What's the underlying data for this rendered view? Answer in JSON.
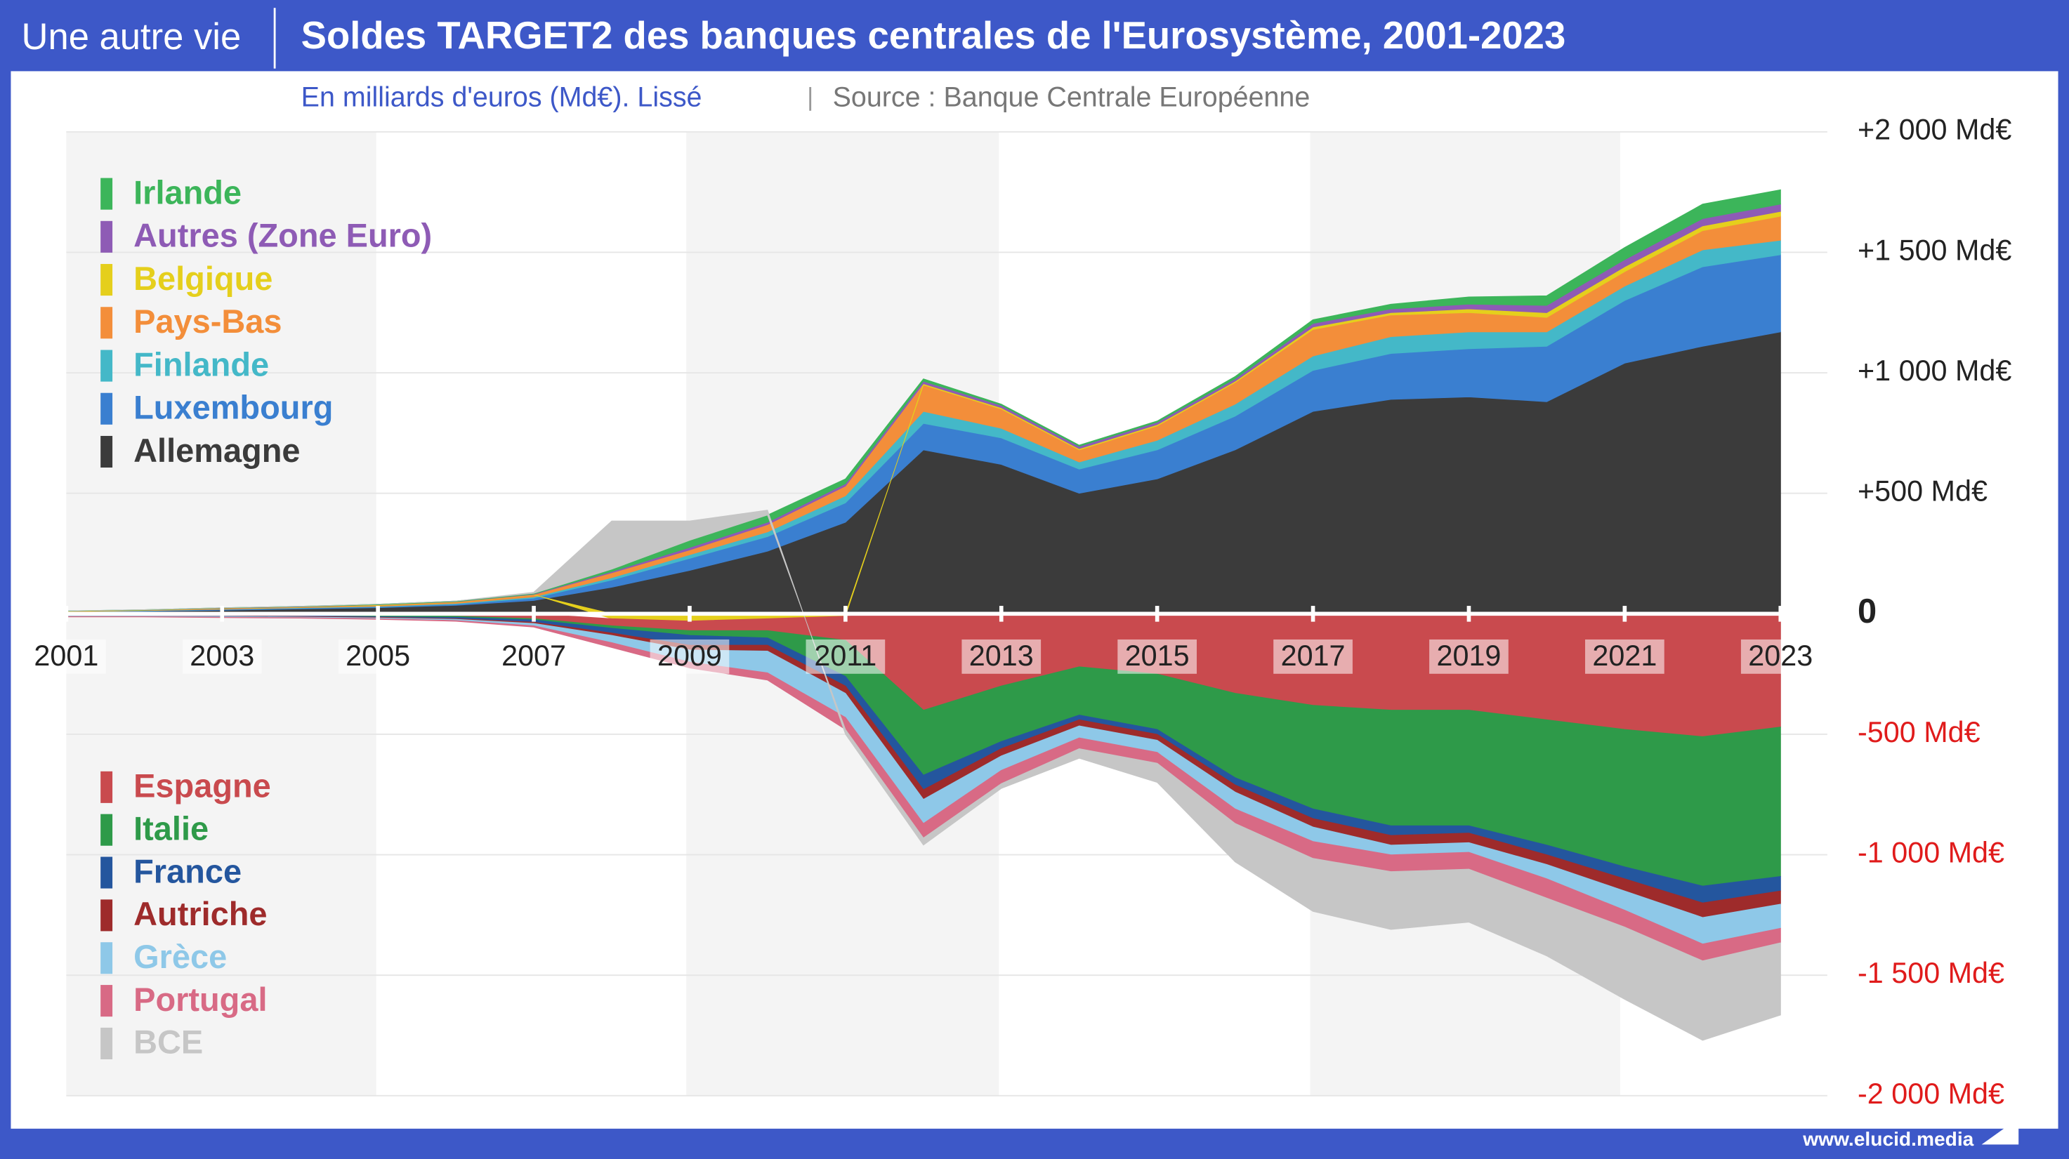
{
  "chart_data": {
    "type": "stacked-area",
    "brand": "Une autre vie",
    "title": "Soldes TARGET2 des banques centrales de l'Eurosystème, 2001-2023",
    "subtitle": "En milliards d'euros (Md€). Lissé",
    "source": "Source : Banque Centrale Européenne",
    "website": "www.elucid.media",
    "x": [
      2001,
      2002,
      2003,
      2004,
      2005,
      2006,
      2007,
      2008,
      2009,
      2010,
      2011,
      2012,
      2013,
      2014,
      2015,
      2016,
      2017,
      2018,
      2019,
      2020,
      2021,
      2022,
      2023
    ],
    "xlim": [
      2001,
      2023.6
    ],
    "xticks": [
      2001,
      2003,
      2005,
      2007,
      2009,
      2011,
      2013,
      2015,
      2017,
      2019,
      2021,
      2023
    ],
    "ylim": [
      -2000,
      2000
    ],
    "yticks": [
      {
        "value": 2000,
        "label": "+2 000 Md€"
      },
      {
        "value": 1500,
        "label": "+1 500 Md€"
      },
      {
        "value": 1000,
        "label": "+1 000 Md€"
      },
      {
        "value": 500,
        "label": "+500 Md€"
      },
      0,
      {
        "value": -500,
        "label": "-500 Md€"
      },
      {
        "value": -1000,
        "label": "-1 000 Md€"
      },
      {
        "value": -1500,
        "label": "-1 500 Md€"
      },
      {
        "value": -2000,
        "label": "-2 000 Md€"
      }
    ],
    "grid": true,
    "series": [
      {
        "name": "Allemagne",
        "color": "#3b3b3b",
        "values": [
          5,
          10,
          15,
          20,
          25,
          35,
          55,
          110,
          180,
          260,
          380,
          680,
          620,
          500,
          560,
          680,
          840,
          890,
          900,
          880,
          1040,
          1110,
          1170
        ]
      },
      {
        "name": "Luxembourg",
        "color": "#3a7fd0",
        "values": [
          2,
          2,
          3,
          3,
          4,
          5,
          10,
          30,
          50,
          60,
          80,
          110,
          110,
          100,
          120,
          140,
          170,
          190,
          200,
          230,
          260,
          330,
          320
        ]
      },
      {
        "name": "Finlande",
        "color": "#44b8c8",
        "values": [
          1,
          1,
          1,
          2,
          2,
          3,
          5,
          10,
          15,
          20,
          30,
          50,
          40,
          30,
          40,
          50,
          60,
          70,
          70,
          60,
          60,
          70,
          60
        ]
      },
      {
        "name": "Pays-Bas",
        "color": "#f38e3a",
        "values": [
          2,
          2,
          3,
          3,
          4,
          5,
          8,
          20,
          20,
          30,
          40,
          110,
          80,
          50,
          60,
          90,
          110,
          90,
          80,
          60,
          60,
          80,
          100
        ]
      },
      {
        "name": "Belgique",
        "color": "#e5cf1c",
        "values": [
          1,
          1,
          1,
          1,
          2,
          2,
          2,
          -20,
          -30,
          -20,
          -10,
          5,
          5,
          5,
          5,
          5,
          10,
          10,
          15,
          20,
          20,
          20,
          20
        ]
      },
      {
        "name": "Autres (Zone Euro)",
        "color": "#8e5bb5",
        "values": [
          0,
          0,
          1,
          1,
          1,
          1,
          2,
          5,
          10,
          10,
          10,
          10,
          10,
          10,
          10,
          10,
          15,
          15,
          20,
          30,
          30,
          30,
          30
        ]
      },
      {
        "name": "Irlande",
        "color": "#3cb55a",
        "values": [
          1,
          1,
          1,
          1,
          2,
          2,
          3,
          10,
          30,
          30,
          20,
          10,
          5,
          5,
          5,
          10,
          15,
          20,
          30,
          40,
          50,
          60,
          60
        ]
      },
      {
        "name": "Espagne",
        "color": "#c94a4e",
        "values": [
          -5,
          -5,
          -5,
          -5,
          -8,
          -10,
          -20,
          -30,
          -40,
          -50,
          -100,
          -400,
          -300,
          -220,
          -250,
          -330,
          -380,
          -400,
          -400,
          -440,
          -480,
          -510,
          -470
        ]
      },
      {
        "name": "Italie",
        "color": "#2e9a49",
        "values": [
          -2,
          -2,
          -3,
          -3,
          -4,
          -5,
          -5,
          -10,
          -20,
          -30,
          -150,
          -270,
          -230,
          -200,
          -230,
          -350,
          -430,
          -480,
          -480,
          -520,
          -570,
          -620,
          -620
        ]
      },
      {
        "name": "France",
        "color": "#24569e",
        "values": [
          -2,
          -2,
          -2,
          -3,
          -3,
          -5,
          -10,
          -20,
          -40,
          -30,
          -40,
          -60,
          -30,
          -20,
          -20,
          -30,
          -40,
          -40,
          -30,
          -40,
          -50,
          -70,
          -60
        ]
      },
      {
        "name": "Autriche",
        "color": "#9e2b2b",
        "values": [
          -1,
          -1,
          -1,
          -2,
          -2,
          -3,
          -5,
          -10,
          -20,
          -25,
          -30,
          -40,
          -30,
          -25,
          -25,
          -30,
          -35,
          -40,
          -40,
          -40,
          -50,
          -60,
          -55
        ]
      },
      {
        "name": "Grèce",
        "color": "#8ec8e8",
        "values": [
          -2,
          -2,
          -3,
          -3,
          -4,
          -5,
          -10,
          -30,
          -50,
          -90,
          -100,
          -100,
          -60,
          -50,
          -50,
          -70,
          -60,
          -40,
          -40,
          -60,
          -80,
          -110,
          -100
        ]
      },
      {
        "name": "Portugal",
        "color": "#d86a85",
        "values": [
          -1,
          -1,
          -2,
          -2,
          -2,
          -3,
          -5,
          -20,
          -25,
          -30,
          -50,
          -60,
          -55,
          -45,
          -45,
          -60,
          -70,
          -70,
          -70,
          -80,
          -70,
          -70,
          -60
        ]
      },
      {
        "name": "BCE",
        "color": "#c6c6c6",
        "values": [
          0,
          0,
          0,
          0,
          0,
          0,
          5,
          200,
          80,
          20,
          -20,
          -30,
          -20,
          -40,
          -80,
          -160,
          -220,
          -240,
          -220,
          -240,
          -300,
          -330,
          -300
        ]
      }
    ]
  }
}
